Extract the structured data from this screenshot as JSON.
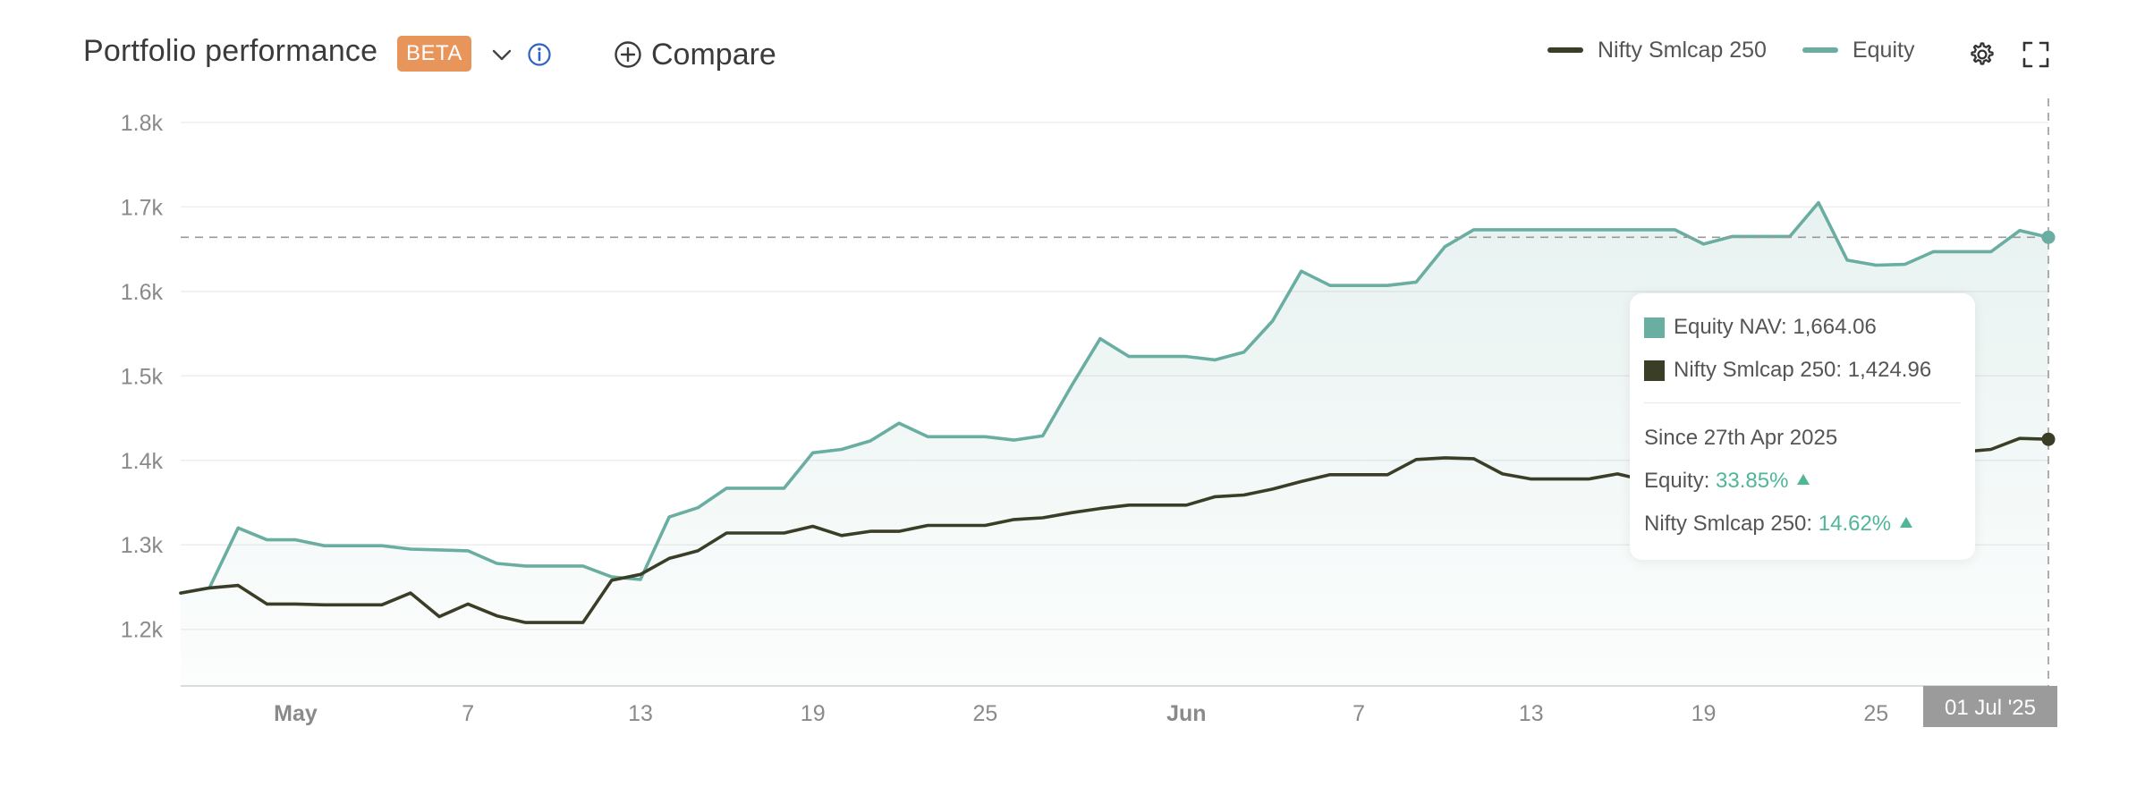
{
  "header": {
    "title": "Portfolio performance",
    "badge": "BETA",
    "compare_label": "Compare"
  },
  "legend": {
    "items": [
      {
        "label": "Nifty Smlcap 250",
        "color": "#3a3e27"
      },
      {
        "label": "Equity",
        "color": "#6aaea1"
      }
    ]
  },
  "tooltip": {
    "equity_label": "Equity NAV:",
    "equity_value": "1,664.06",
    "nifty_label": "Nifty Smlcap 250:",
    "nifty_value": "1,424.96",
    "since": "Since 27th Apr 2025",
    "equity_ret_label": "Equity:",
    "equity_ret": "33.85%",
    "nifty_ret_label": "Nifty Smlcap 250:",
    "nifty_ret": "14.62%"
  },
  "chart_data": {
    "type": "line",
    "xlabel": "",
    "ylabel": "",
    "ylim": [
      1133,
      1820
    ],
    "yticks": [
      1200,
      1300,
      1400,
      1500,
      1600,
      1700,
      1800
    ],
    "ytick_labels": [
      "1.2k",
      "1.3k",
      "1.4k",
      "1.5k",
      "1.6k",
      "1.7k",
      "1.8k"
    ],
    "x_range": [
      "2025-04-27",
      "2025-07-01"
    ],
    "x_ticks": [
      {
        "date": "2025-05-01",
        "label": "May",
        "bold": true
      },
      {
        "date": "2025-05-07",
        "label": "7"
      },
      {
        "date": "2025-05-13",
        "label": "13"
      },
      {
        "date": "2025-05-19",
        "label": "19"
      },
      {
        "date": "2025-05-25",
        "label": "25"
      },
      {
        "date": "2025-06-01",
        "label": "Jun",
        "bold": true
      },
      {
        "date": "2025-06-07",
        "label": "7"
      },
      {
        "date": "2025-06-13",
        "label": "13"
      },
      {
        "date": "2025-06-19",
        "label": "19"
      },
      {
        "date": "2025-06-25",
        "label": "25"
      }
    ],
    "crosshair": {
      "date": "2025-07-01",
      "label": "01 Jul '25",
      "y": 1664.06
    },
    "grid": true,
    "series": [
      {
        "name": "Equity",
        "color": "#6aaea1",
        "fill": true,
        "points": [
          [
            "2025-04-27",
            1243
          ],
          [
            "2025-04-28",
            1249
          ],
          [
            "2025-04-29",
            1320
          ],
          [
            "2025-04-30",
            1306
          ],
          [
            "2025-05-01",
            1306
          ],
          [
            "2025-05-02",
            1299
          ],
          [
            "2025-05-03",
            1299
          ],
          [
            "2025-05-04",
            1299
          ],
          [
            "2025-05-05",
            1295
          ],
          [
            "2025-05-06",
            1294
          ],
          [
            "2025-05-07",
            1293
          ],
          [
            "2025-05-08",
            1278
          ],
          [
            "2025-05-09",
            1275
          ],
          [
            "2025-05-10",
            1275
          ],
          [
            "2025-05-11",
            1275
          ],
          [
            "2025-05-12",
            1262
          ],
          [
            "2025-05-13",
            1259
          ],
          [
            "2025-05-14",
            1333
          ],
          [
            "2025-05-15",
            1344
          ],
          [
            "2025-05-16",
            1367
          ],
          [
            "2025-05-17",
            1367
          ],
          [
            "2025-05-18",
            1367
          ],
          [
            "2025-05-19",
            1409
          ],
          [
            "2025-05-20",
            1413
          ],
          [
            "2025-05-21",
            1423
          ],
          [
            "2025-05-22",
            1444
          ],
          [
            "2025-05-23",
            1428
          ],
          [
            "2025-05-24",
            1428
          ],
          [
            "2025-05-25",
            1428
          ],
          [
            "2025-05-26",
            1424
          ],
          [
            "2025-05-27",
            1429
          ],
          [
            "2025-05-28",
            1488
          ],
          [
            "2025-05-29",
            1544
          ],
          [
            "2025-05-30",
            1523
          ],
          [
            "2025-05-31",
            1523
          ],
          [
            "2025-06-01",
            1523
          ],
          [
            "2025-06-02",
            1519
          ],
          [
            "2025-06-03",
            1528
          ],
          [
            "2025-06-04",
            1565
          ],
          [
            "2025-06-05",
            1624
          ],
          [
            "2025-06-06",
            1607
          ],
          [
            "2025-06-07",
            1607
          ],
          [
            "2025-06-08",
            1607
          ],
          [
            "2025-06-09",
            1611
          ],
          [
            "2025-06-10",
            1653
          ],
          [
            "2025-06-11",
            1673
          ],
          [
            "2025-06-12",
            1673
          ],
          [
            "2025-06-13",
            1673
          ],
          [
            "2025-06-14",
            1673
          ],
          [
            "2025-06-15",
            1673
          ],
          [
            "2025-06-16",
            1673
          ],
          [
            "2025-06-17",
            1673
          ],
          [
            "2025-06-18",
            1673
          ],
          [
            "2025-06-19",
            1656
          ],
          [
            "2025-06-20",
            1665
          ],
          [
            "2025-06-21",
            1665
          ],
          [
            "2025-06-22",
            1665
          ],
          [
            "2025-06-23",
            1705
          ],
          [
            "2025-06-24",
            1637
          ],
          [
            "2025-06-25",
            1631
          ],
          [
            "2025-06-26",
            1632
          ],
          [
            "2025-06-27",
            1647
          ],
          [
            "2025-06-28",
            1647
          ],
          [
            "2025-06-29",
            1647
          ],
          [
            "2025-06-30",
            1672
          ],
          [
            "2025-07-01",
            1664.06
          ]
        ]
      },
      {
        "name": "Nifty Smlcap 250",
        "color": "#3a3e27",
        "fill": false,
        "points": [
          [
            "2025-04-27",
            1243
          ],
          [
            "2025-04-28",
            1249
          ],
          [
            "2025-04-29",
            1252
          ],
          [
            "2025-04-30",
            1230
          ],
          [
            "2025-05-01",
            1230
          ],
          [
            "2025-05-02",
            1229
          ],
          [
            "2025-05-03",
            1229
          ],
          [
            "2025-05-04",
            1229
          ],
          [
            "2025-05-05",
            1243
          ],
          [
            "2025-05-06",
            1215
          ],
          [
            "2025-05-07",
            1230
          ],
          [
            "2025-05-08",
            1216
          ],
          [
            "2025-05-09",
            1208
          ],
          [
            "2025-05-10",
            1208
          ],
          [
            "2025-05-11",
            1208
          ],
          [
            "2025-05-12",
            1258
          ],
          [
            "2025-05-13",
            1265
          ],
          [
            "2025-05-14",
            1284
          ],
          [
            "2025-05-15",
            1293
          ],
          [
            "2025-05-16",
            1314
          ],
          [
            "2025-05-17",
            1314
          ],
          [
            "2025-05-18",
            1314
          ],
          [
            "2025-05-19",
            1322
          ],
          [
            "2025-05-20",
            1311
          ],
          [
            "2025-05-21",
            1316
          ],
          [
            "2025-05-22",
            1316
          ],
          [
            "2025-05-23",
            1323
          ],
          [
            "2025-05-24",
            1323
          ],
          [
            "2025-05-25",
            1323
          ],
          [
            "2025-05-26",
            1330
          ],
          [
            "2025-05-27",
            1332
          ],
          [
            "2025-05-28",
            1338
          ],
          [
            "2025-05-29",
            1343
          ],
          [
            "2025-05-30",
            1347
          ],
          [
            "2025-05-31",
            1347
          ],
          [
            "2025-06-01",
            1347
          ],
          [
            "2025-06-02",
            1357
          ],
          [
            "2025-06-03",
            1359
          ],
          [
            "2025-06-04",
            1366
          ],
          [
            "2025-06-05",
            1375
          ],
          [
            "2025-06-06",
            1383
          ],
          [
            "2025-06-07",
            1383
          ],
          [
            "2025-06-08",
            1383
          ],
          [
            "2025-06-09",
            1401
          ],
          [
            "2025-06-10",
            1403
          ],
          [
            "2025-06-11",
            1402
          ],
          [
            "2025-06-12",
            1384
          ],
          [
            "2025-06-13",
            1378
          ],
          [
            "2025-06-14",
            1378
          ],
          [
            "2025-06-15",
            1378
          ],
          [
            "2025-06-16",
            1384
          ],
          [
            "2025-06-17",
            1376
          ],
          [
            "2025-06-18",
            1373
          ],
          [
            "2025-06-19",
            1376
          ],
          [
            "2025-06-20",
            1383
          ],
          [
            "2025-06-21",
            1383
          ],
          [
            "2025-06-22",
            1383
          ],
          [
            "2025-06-23",
            1390
          ],
          [
            "2025-06-24",
            1396
          ],
          [
            "2025-06-25",
            1402
          ],
          [
            "2025-06-26",
            1406
          ],
          [
            "2025-06-27",
            1410
          ],
          [
            "2025-06-28",
            1410
          ],
          [
            "2025-06-29",
            1413
          ],
          [
            "2025-06-30",
            1426
          ],
          [
            "2025-07-01",
            1424.96
          ]
        ]
      }
    ]
  }
}
